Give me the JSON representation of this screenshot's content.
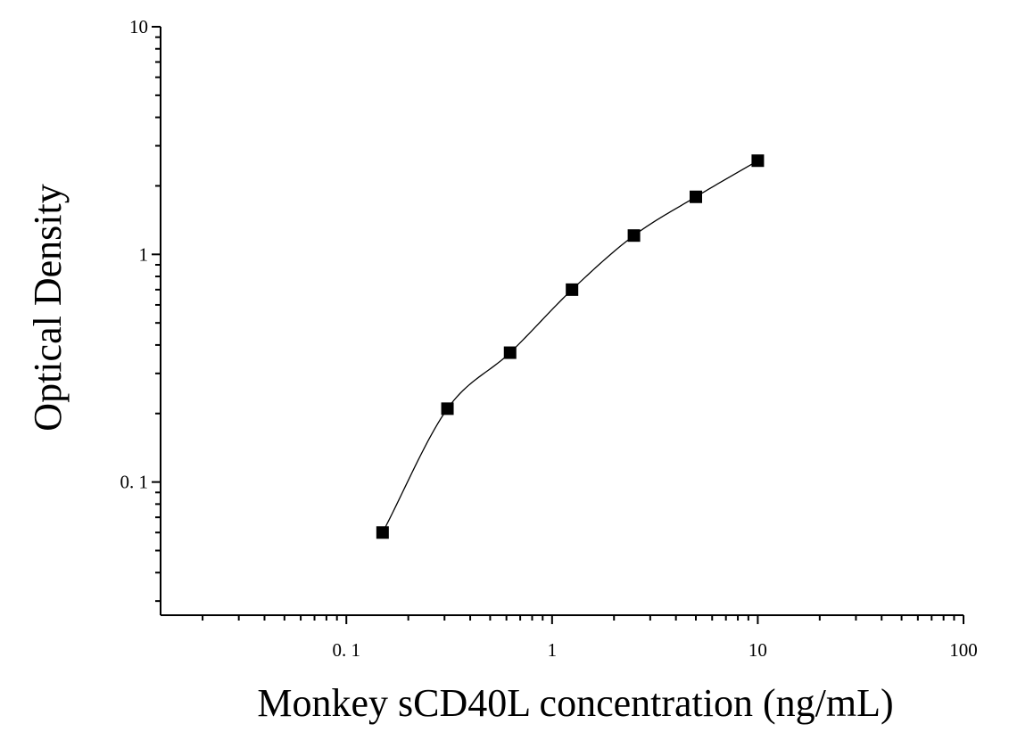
{
  "chart_data": {
    "type": "scatter",
    "title": "",
    "xlabel": "Monkey sCD40L concentration (ng/mL)",
    "ylabel": "Optical Density",
    "xscale": "log",
    "yscale": "log",
    "xlim": [
      0.0125,
      100
    ],
    "ylim": [
      0.026,
      10
    ],
    "x_ticks": [
      {
        "value": 0.1,
        "label": "0. 1"
      },
      {
        "value": 1,
        "label": "1"
      },
      {
        "value": 10,
        "label": "10"
      },
      {
        "value": 100,
        "label": "100"
      }
    ],
    "y_ticks": [
      {
        "value": 0.1,
        "label": "0. 1"
      },
      {
        "value": 1,
        "label": "1"
      },
      {
        "value": 10,
        "label": "10"
      }
    ],
    "grid": false,
    "legend": "none",
    "series": [
      {
        "marker": "square",
        "color": "#000000",
        "x": [
          0.15,
          0.31,
          0.625,
          1.25,
          2.5,
          5,
          10
        ],
        "y": [
          0.06,
          0.21,
          0.37,
          0.7,
          1.21,
          1.79,
          2.58
        ]
      }
    ],
    "fit_curve": {
      "type": "smooth",
      "color": "#000000",
      "x_range": [
        0.15,
        10
      ]
    }
  }
}
